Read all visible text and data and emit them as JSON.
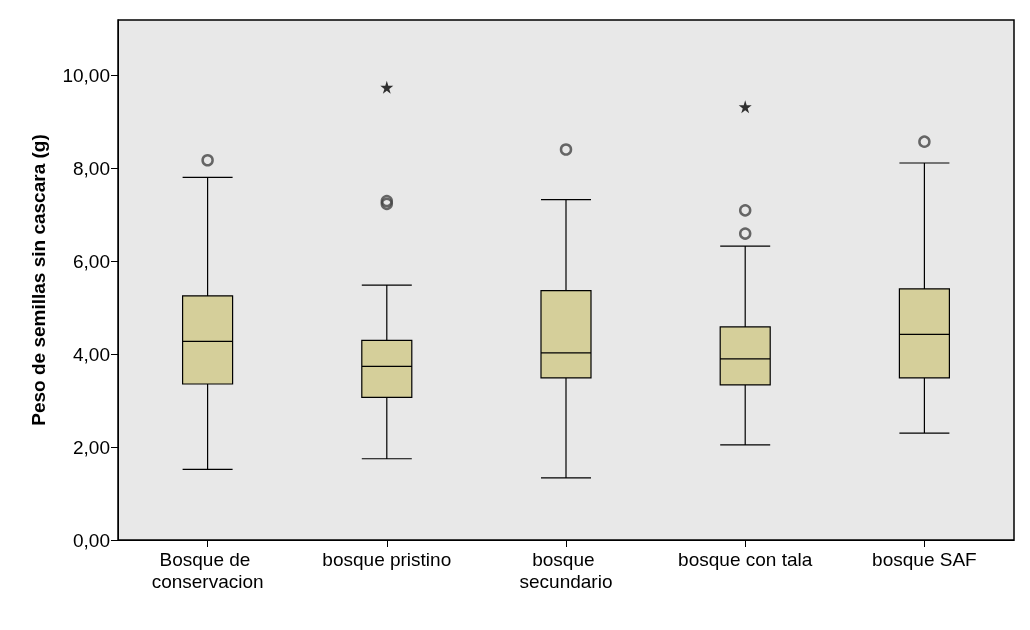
{
  "chart_data": {
    "type": "box",
    "ylabel": "Peso de semillas sin cascara (g)",
    "categories": [
      "Bosque de conservacion",
      "bosque pristino",
      "bosque secundario",
      "bosque con tala",
      "bosque SAF"
    ],
    "color": "#d5cf9a",
    "grid": false,
    "boxes": [
      {
        "low": 1.52,
        "q1": 3.36,
        "median": 4.28,
        "q3": 5.26,
        "high": 7.81,
        "outliers": [
          8.18
        ]
      },
      {
        "low": 1.75,
        "q1": 3.07,
        "median": 3.74,
        "q3": 4.3,
        "high": 5.49,
        "outliers": [
          7.24,
          7.3
        ]
      },
      {
        "low": 1.34,
        "q1": 3.49,
        "median": 4.03,
        "q3": 5.37,
        "high": 7.33,
        "outliers": [
          8.41
        ]
      },
      {
        "low": 2.05,
        "q1": 3.34,
        "median": 3.9,
        "q3": 4.59,
        "high": 6.33,
        "outliers": [
          6.6,
          7.1
        ]
      },
      {
        "low": 2.3,
        "q1": 3.49,
        "median": 4.43,
        "q3": 5.41,
        "high": 8.12,
        "outliers": [
          8.58
        ]
      }
    ],
    "series": [
      {
        "type": "scatter",
        "marker": "star",
        "color": "#000000",
        "x": [
          "bosque pristino",
          "bosque con tala"
        ],
        "values": [
          9.75,
          9.33
        ]
      }
    ],
    "ylim": [
      0,
      11.2
    ],
    "yticks": [
      {
        "value": 0,
        "label": "0,00"
      },
      {
        "value": 2,
        "label": "2,00"
      },
      {
        "value": 4,
        "label": "4,00"
      },
      {
        "value": 6,
        "label": "6,00"
      },
      {
        "value": 8,
        "label": "8,00"
      },
      {
        "value": 10,
        "label": "10,00"
      }
    ]
  }
}
